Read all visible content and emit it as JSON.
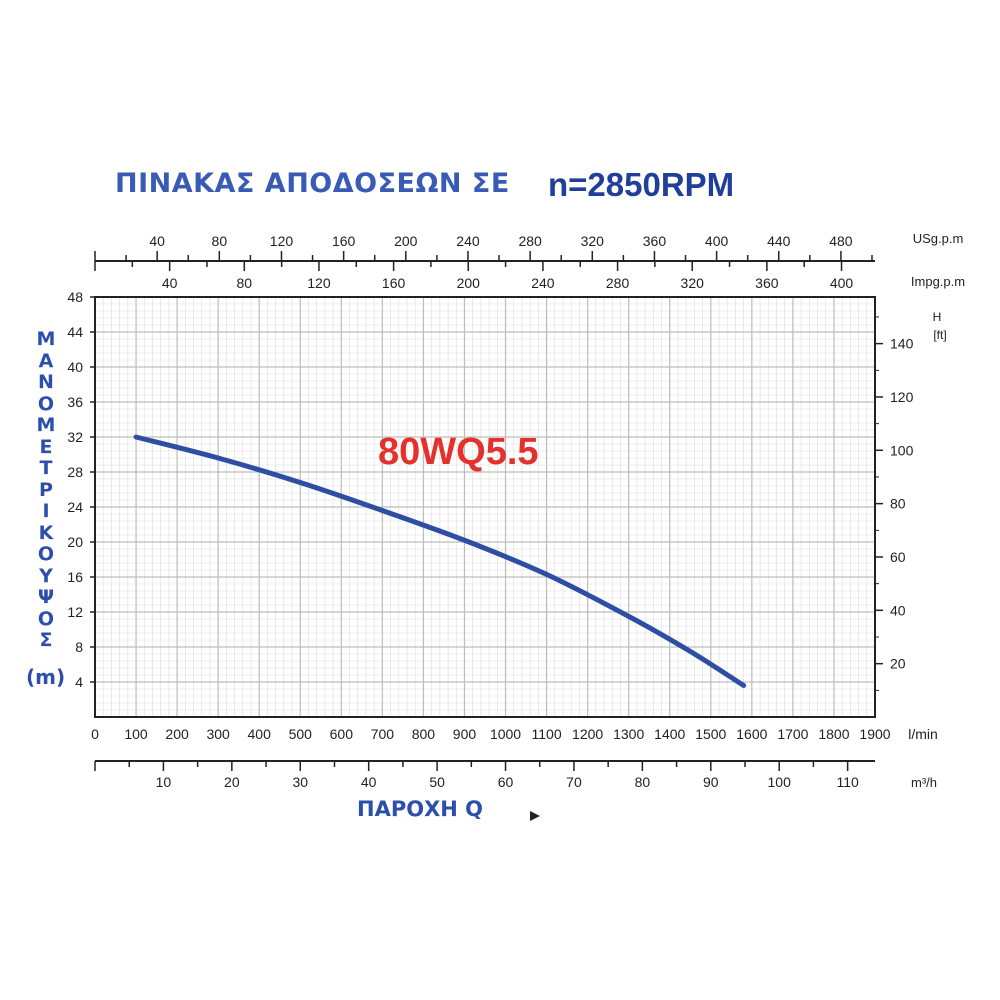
{
  "title_main": "ΠΙΝΑΚΑΣ ΑΠΟΔΟΣΕΩΝ ΣΕ",
  "title_rpm": "n=2850RPM",
  "model_label": "80WQ5.5",
  "y_axis_label_letters": [
    "Μ",
    "Α",
    "Ν",
    "Ο",
    "Μ",
    "Ε",
    "Τ",
    "Ρ",
    "Ι",
    "Κ",
    "Ο",
    "Υ",
    "Ψ",
    "Ο",
    "Σ"
  ],
  "y_axis_label_unit": "(m)",
  "x_axis_label": "ΠΑΡΟΧΗ Q",
  "colors": {
    "curve": "#2d4ea3",
    "title": "#3a5bb5",
    "model": "#e5312b",
    "grid": "#bdbdbd"
  },
  "chart_data": {
    "type": "line",
    "title": "ΠΙΝΑΚΑΣ ΑΠΟΔΟΣΕΩΝ ΣΕ n=2850RPM",
    "xlabel": "ΠΑΡΟΧΗ Q",
    "ylabel": "ΜΑΝΟΜΕΤΡΙΚΟ ΥΨΟΣ (m)",
    "xlim": [
      0,
      1900
    ],
    "ylim": [
      0,
      48
    ],
    "grid": true,
    "series": [
      {
        "name": "80WQ5.5",
        "x": [
          100,
          300,
          500,
          700,
          900,
          1100,
          1300,
          1450,
          1580
        ],
        "y": [
          32,
          29.6,
          26.8,
          23.6,
          20.2,
          16.3,
          11.5,
          7.5,
          3.6
        ]
      }
    ],
    "axes": {
      "lpm": {
        "unit": "l/min",
        "ticks": [
          0,
          100,
          200,
          300,
          400,
          500,
          600,
          700,
          800,
          900,
          1000,
          1100,
          1200,
          1300,
          1400,
          1500,
          1600,
          1700,
          1800,
          1900
        ]
      },
      "m3h": {
        "unit": "m³/h",
        "ticks": [
          10,
          20,
          30,
          40,
          50,
          60,
          70,
          80,
          90,
          100,
          110
        ]
      },
      "usgpm": {
        "unit": "USg.p.m",
        "ticks": [
          40,
          80,
          120,
          160,
          200,
          240,
          280,
          320,
          360,
          400,
          440,
          480
        ]
      },
      "impgpm": {
        "unit": "Impg.p.m",
        "ticks": [
          40,
          80,
          120,
          160,
          200,
          240,
          280,
          320,
          360,
          400
        ]
      },
      "head_m": {
        "unit": "m",
        "ticks": [
          4,
          8,
          12,
          16,
          20,
          24,
          28,
          32,
          36,
          40,
          44,
          48
        ]
      },
      "head_ft": {
        "unit_top": "H",
        "unit_bottom": "[ft]",
        "ticks": [
          20,
          40,
          60,
          80,
          100,
          120,
          140
        ]
      }
    }
  }
}
